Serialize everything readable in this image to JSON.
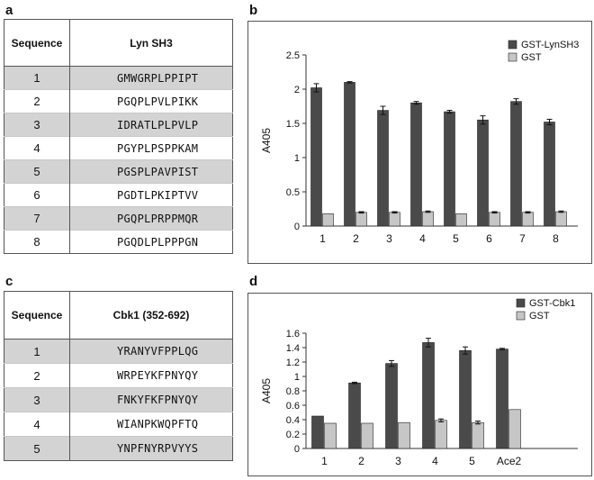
{
  "panels": {
    "a": {
      "label": "a",
      "col_header_1": "Sequence",
      "col_header_2": "Lyn SH3",
      "rows": [
        {
          "n": "1",
          "seq": "GMWGRPLPPIPT"
        },
        {
          "n": "2",
          "seq": "PGQPLPVLPIKK"
        },
        {
          "n": "3",
          "seq": "IDRATLPLPVLP"
        },
        {
          "n": "4",
          "seq": "PGYPLPSPPKAM"
        },
        {
          "n": "5",
          "seq": "PGSPLPAVPIST"
        },
        {
          "n": "6",
          "seq": "PGDTLPKIPTVV"
        },
        {
          "n": "7",
          "seq": "PGQPLPRPPMQR"
        },
        {
          "n": "8",
          "seq": "PGQDLPLPPPGN"
        }
      ]
    },
    "c": {
      "label": "c",
      "col_header_1": "Sequence",
      "col_header_2": "Cbk1 (352-692)",
      "rows": [
        {
          "n": "1",
          "seq": "YRANYVFPPLQG"
        },
        {
          "n": "2",
          "seq": "WRPEYKFPNYQY"
        },
        {
          "n": "3",
          "seq": "FNKYFKFPNYQY"
        },
        {
          "n": "4",
          "seq": "WIANPKWQPFTQ"
        },
        {
          "n": "5",
          "seq": "YNPFNYRPVYYS"
        }
      ]
    },
    "b": {
      "label": "b"
    },
    "d": {
      "label": "d"
    }
  },
  "colors": {
    "dark_bar": "#4a4a4a",
    "light_bar": "#c6c6c6",
    "row_shade": "#d3d3d3"
  },
  "chart_data": [
    {
      "id": "b",
      "type": "bar",
      "ylabel": "A405",
      "xlabel": "",
      "categories": [
        "1",
        "2",
        "3",
        "4",
        "5",
        "6",
        "7",
        "8"
      ],
      "ylim": [
        0,
        2.5
      ],
      "yticks": [
        "0",
        "0.5",
        "1",
        "1.5",
        "2",
        "2.5"
      ],
      "legend_position": "top-right",
      "series": [
        {
          "name": "GST-LynSH3",
          "values": [
            2.02,
            2.1,
            1.69,
            1.8,
            1.67,
            1.55,
            1.82,
            1.52
          ],
          "errors": [
            0.06,
            0.01,
            0.06,
            0.02,
            0.02,
            0.06,
            0.04,
            0.04
          ]
        },
        {
          "name": "GST",
          "values": [
            0.18,
            0.2,
            0.2,
            0.21,
            0.18,
            0.2,
            0.2,
            0.21
          ],
          "errors": [
            0.0,
            0.01,
            0.01,
            0.01,
            0.0,
            0.01,
            0.01,
            0.01
          ]
        }
      ]
    },
    {
      "id": "d",
      "type": "bar",
      "ylabel": "A405",
      "xlabel": "",
      "categories": [
        "1",
        "2",
        "3",
        "4",
        "5",
        "Ace2"
      ],
      "ylim": [
        0,
        1.6
      ],
      "yticks": [
        "0",
        "0.2",
        "0.4",
        "0.6",
        "0.8",
        "1",
        "1.2",
        "1.4",
        "1.6"
      ],
      "legend_position": "top-right",
      "series": [
        {
          "name": "GST-Cbk1",
          "values": [
            0.45,
            0.91,
            1.18,
            1.47,
            1.36,
            1.38
          ],
          "errors": [
            0.0,
            0.01,
            0.04,
            0.06,
            0.05,
            0.01
          ]
        },
        {
          "name": "GST",
          "values": [
            0.35,
            0.35,
            0.36,
            0.39,
            0.36,
            0.54
          ],
          "errors": [
            0.0,
            0.0,
            0.0,
            0.02,
            0.02,
            0.0
          ]
        }
      ]
    }
  ]
}
